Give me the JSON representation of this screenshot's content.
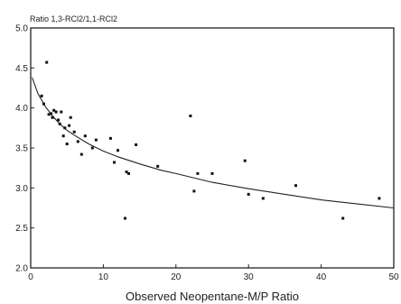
{
  "chart_data": {
    "type": "scatter",
    "title": "Ratio 1,3-RCl2/1,1-RCl2",
    "xlabel": "Observed Neopentane-M/P Ratio",
    "ylabel": "",
    "xlim": [
      0,
      50
    ],
    "ylim": [
      2.0,
      5.0
    ],
    "x_ticks": [
      "0",
      "10",
      "20",
      "30",
      "40",
      "50"
    ],
    "y_ticks": [
      "2.0",
      "2.5",
      "3.0",
      "3.5",
      "4.0",
      "4.5",
      "5.0"
    ],
    "x_tick_values": [
      0,
      10,
      20,
      30,
      40,
      50
    ],
    "y_tick_values": [
      2.0,
      2.5,
      3.0,
      3.5,
      4.0,
      4.5,
      5.0
    ],
    "grid": false,
    "legend": "none",
    "series": [
      {
        "points": [
          [
            1.5,
            4.15
          ],
          [
            1.8,
            4.05
          ],
          [
            2.2,
            4.57
          ],
          [
            2.5,
            3.92
          ],
          [
            2.8,
            3.93
          ],
          [
            3.0,
            3.88
          ],
          [
            3.2,
            3.97
          ],
          [
            3.5,
            3.95
          ],
          [
            3.8,
            3.85
          ],
          [
            4.0,
            3.8
          ],
          [
            4.2,
            3.95
          ],
          [
            4.5,
            3.65
          ],
          [
            4.7,
            3.75
          ],
          [
            5.0,
            3.55
          ],
          [
            5.3,
            3.78
          ],
          [
            5.5,
            3.88
          ],
          [
            6.0,
            3.7
          ],
          [
            6.5,
            3.58
          ],
          [
            7.0,
            3.42
          ],
          [
            7.5,
            3.65
          ],
          [
            8.5,
            3.5
          ],
          [
            9.0,
            3.6
          ],
          [
            11.0,
            3.62
          ],
          [
            11.5,
            3.32
          ],
          [
            12.0,
            3.47
          ],
          [
            13.0,
            2.62
          ],
          [
            13.2,
            3.2
          ],
          [
            13.5,
            3.18
          ],
          [
            14.5,
            3.54
          ],
          [
            17.5,
            3.27
          ],
          [
            22.0,
            3.9
          ],
          [
            22.5,
            2.96
          ],
          [
            23.0,
            3.18
          ],
          [
            25.0,
            3.18
          ],
          [
            29.5,
            3.34
          ],
          [
            30.0,
            2.92
          ],
          [
            32.0,
            2.87
          ],
          [
            36.5,
            3.03
          ],
          [
            43.0,
            2.62
          ],
          [
            48.0,
            2.87
          ]
        ]
      }
    ],
    "fit_curve": {
      "x": [
        0.2,
        1,
        2,
        3,
        4,
        5,
        6,
        8,
        10,
        12,
        15,
        18,
        20,
        25,
        30,
        35,
        40,
        45,
        50
      ],
      "y": [
        4.38,
        4.18,
        4.02,
        3.9,
        3.8,
        3.72,
        3.66,
        3.55,
        3.46,
        3.39,
        3.3,
        3.22,
        3.18,
        3.07,
        2.99,
        2.92,
        2.85,
        2.8,
        2.75
      ]
    },
    "colors": {
      "ink": "#222222",
      "background": "#ffffff"
    }
  }
}
